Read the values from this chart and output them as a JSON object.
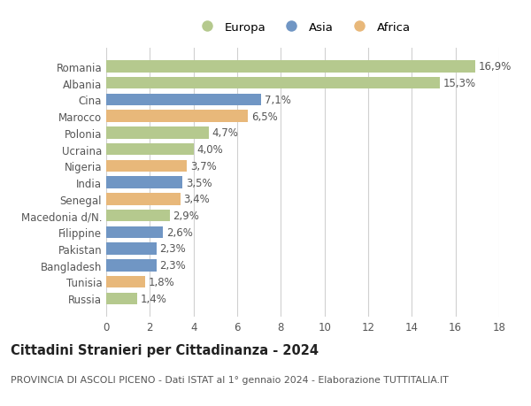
{
  "categories": [
    "Romania",
    "Albania",
    "Cina",
    "Marocco",
    "Polonia",
    "Ucraina",
    "Nigeria",
    "India",
    "Senegal",
    "Macedonia d/N.",
    "Filippine",
    "Pakistan",
    "Bangladesh",
    "Tunisia",
    "Russia"
  ],
  "values": [
    16.9,
    15.3,
    7.1,
    6.5,
    4.7,
    4.0,
    3.7,
    3.5,
    3.4,
    2.9,
    2.6,
    2.3,
    2.3,
    1.8,
    1.4
  ],
  "continents": [
    "Europa",
    "Europa",
    "Asia",
    "Africa",
    "Europa",
    "Europa",
    "Africa",
    "Asia",
    "Africa",
    "Europa",
    "Asia",
    "Asia",
    "Asia",
    "Africa",
    "Europa"
  ],
  "colors": {
    "Europa": "#b5c98e",
    "Asia": "#7096c4",
    "Africa": "#e8b87a"
  },
  "legend_labels": [
    "Europa",
    "Asia",
    "Africa"
  ],
  "title": "Cittadini Stranieri per Cittadinanza - 2024",
  "subtitle": "PROVINCIA DI ASCOLI PICENO - Dati ISTAT al 1° gennaio 2024 - Elaborazione TUTTITALIA.IT",
  "xlim": [
    0,
    18
  ],
  "xticks": [
    0,
    2,
    4,
    6,
    8,
    10,
    12,
    14,
    16,
    18
  ],
  "background_color": "#ffffff",
  "grid_color": "#d0d0d0",
  "label_fontsize": 8.5,
  "tick_fontsize": 8.5,
  "title_fontsize": 10.5,
  "subtitle_fontsize": 7.8,
  "bar_height": 0.72
}
